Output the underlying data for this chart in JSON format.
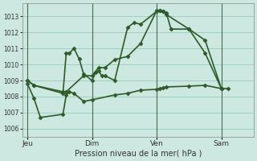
{
  "background_color": "#cce8e0",
  "grid_color": "#99ccbb",
  "line_color": "#2d5a27",
  "xlabel": "Pression niveau de la mer( hPa )",
  "ylim": [
    1005.5,
    1013.8
  ],
  "yticks": [
    1006,
    1007,
    1008,
    1009,
    1010,
    1011,
    1012,
    1013
  ],
  "day_labels": [
    "Jeu",
    "Dim",
    "Ven",
    "Sam"
  ],
  "day_positions": [
    0.0,
    1.0,
    2.0,
    3.0
  ],
  "xlim": [
    -0.08,
    3.5
  ],
  "series1": {
    "x": [
      0.0,
      0.1,
      0.55,
      0.6,
      0.65,
      0.72,
      0.8,
      0.87,
      1.0,
      1.05,
      1.1,
      1.15,
      1.2,
      1.35,
      1.55,
      1.65,
      1.75,
      2.0,
      2.05,
      2.1,
      2.15,
      2.22,
      2.5,
      2.75,
      3.0
    ],
    "y": [
      1009.0,
      1008.7,
      1008.2,
      1010.7,
      1010.7,
      1011.0,
      1010.35,
      1009.4,
      1009.0,
      1009.5,
      1009.6,
      1009.3,
      1009.3,
      1009.0,
      1012.3,
      1012.6,
      1012.5,
      1013.3,
      1013.35,
      1013.3,
      1013.2,
      1012.2,
      1012.2,
      1010.7,
      1008.5
    ]
  },
  "series2": {
    "x": [
      0.0,
      0.1,
      0.55,
      0.6,
      0.87,
      1.0,
      1.1,
      1.2,
      1.35,
      1.55,
      1.75,
      2.0,
      2.05,
      2.1,
      2.15,
      2.5,
      2.75,
      3.0
    ],
    "y": [
      1009.0,
      1008.7,
      1008.3,
      1008.3,
      1009.3,
      1009.3,
      1009.8,
      1009.8,
      1010.3,
      1010.5,
      1011.3,
      1013.35,
      1013.35,
      1013.3,
      1013.1,
      1012.2,
      1011.5,
      1008.5
    ]
  },
  "series3": {
    "x": [
      0.0,
      0.1,
      0.2,
      0.55,
      0.6,
      0.65,
      0.72,
      0.87,
      1.0,
      1.35,
      1.55,
      1.75,
      2.0,
      2.05,
      2.1,
      2.15,
      2.5,
      2.75,
      3.0,
      3.1
    ],
    "y": [
      1008.8,
      1007.9,
      1006.7,
      1006.9,
      1008.1,
      1008.3,
      1008.2,
      1007.7,
      1007.8,
      1008.1,
      1008.2,
      1008.4,
      1008.45,
      1008.5,
      1008.55,
      1008.6,
      1008.65,
      1008.7,
      1008.5,
      1008.5
    ]
  },
  "marker": "D",
  "markersize": 2.5,
  "linewidth": 1.2
}
